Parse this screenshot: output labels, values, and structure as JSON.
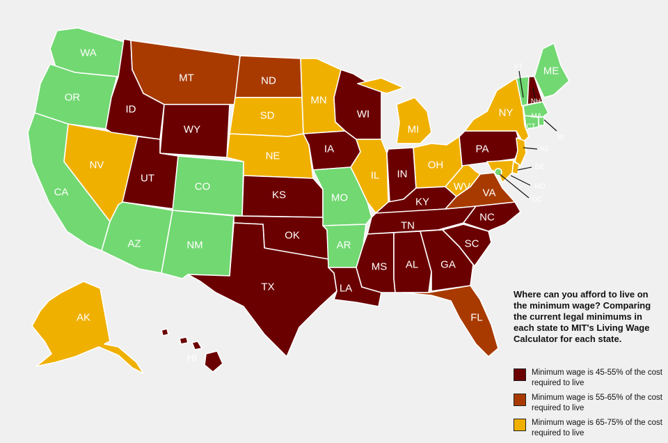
{
  "colors": {
    "band_45_55": "#6b0000",
    "band_55_65": "#a83a00",
    "band_65_75": "#f0b000",
    "band_75_plus": "#72d872"
  },
  "title": "Where can you afford to live on the minimum wage? Comparing the current legal minimums in each state to MIT's Living Wage Calculator for each state.",
  "legend": [
    {
      "label": "Minimum wage is 45-55% of the cost required to live",
      "color": "#6b0000"
    },
    {
      "label": "Minimum wage is 55-65% of the cost required to live",
      "color": "#a83a00"
    },
    {
      "label": "Minimum wage is 65-75% of the cost required to live",
      "color": "#f0b000"
    }
  ],
  "states": [
    {
      "abbr": "WA",
      "band": "band_75_plus"
    },
    {
      "abbr": "OR",
      "band": "band_75_plus"
    },
    {
      "abbr": "CA",
      "band": "band_75_plus"
    },
    {
      "abbr": "NV",
      "band": "band_65_75"
    },
    {
      "abbr": "ID",
      "band": "band_45_55"
    },
    {
      "abbr": "MT",
      "band": "band_55_65"
    },
    {
      "abbr": "WY",
      "band": "band_45_55"
    },
    {
      "abbr": "UT",
      "band": "band_45_55"
    },
    {
      "abbr": "CO",
      "band": "band_75_plus"
    },
    {
      "abbr": "AZ",
      "band": "band_75_plus"
    },
    {
      "abbr": "NM",
      "band": "band_75_plus"
    },
    {
      "abbr": "ND",
      "band": "band_55_65"
    },
    {
      "abbr": "SD",
      "band": "band_65_75"
    },
    {
      "abbr": "NE",
      "band": "band_65_75"
    },
    {
      "abbr": "KS",
      "band": "band_45_55"
    },
    {
      "abbr": "OK",
      "band": "band_45_55"
    },
    {
      "abbr": "TX",
      "band": "band_45_55"
    },
    {
      "abbr": "MN",
      "band": "band_65_75"
    },
    {
      "abbr": "IA",
      "band": "band_45_55"
    },
    {
      "abbr": "MO",
      "band": "band_75_plus"
    },
    {
      "abbr": "AR",
      "band": "band_75_plus"
    },
    {
      "abbr": "LA",
      "band": "band_45_55"
    },
    {
      "abbr": "WI",
      "band": "band_45_55"
    },
    {
      "abbr": "IL",
      "band": "band_65_75"
    },
    {
      "abbr": "MI",
      "band": "band_65_75"
    },
    {
      "abbr": "IN",
      "band": "band_45_55"
    },
    {
      "abbr": "OH",
      "band": "band_65_75"
    },
    {
      "abbr": "KY",
      "band": "band_45_55"
    },
    {
      "abbr": "TN",
      "band": "band_45_55"
    },
    {
      "abbr": "MS",
      "band": "band_45_55"
    },
    {
      "abbr": "AL",
      "band": "band_45_55"
    },
    {
      "abbr": "GA",
      "band": "band_45_55"
    },
    {
      "abbr": "FL",
      "band": "band_55_65"
    },
    {
      "abbr": "SC",
      "band": "band_45_55"
    },
    {
      "abbr": "NC",
      "band": "band_45_55"
    },
    {
      "abbr": "VA",
      "band": "band_55_65"
    },
    {
      "abbr": "WV",
      "band": "band_65_75"
    },
    {
      "abbr": "PA",
      "band": "band_45_55"
    },
    {
      "abbr": "NY",
      "band": "band_65_75"
    },
    {
      "abbr": "VT",
      "band": "band_75_plus"
    },
    {
      "abbr": "NH",
      "band": "band_45_55"
    },
    {
      "abbr": "ME",
      "band": "band_75_plus"
    },
    {
      "abbr": "MA",
      "band": "band_75_plus"
    },
    {
      "abbr": "RI",
      "band": "band_75_plus"
    },
    {
      "abbr": "CT",
      "band": "band_75_plus"
    },
    {
      "abbr": "NJ",
      "band": "band_65_75"
    },
    {
      "abbr": "DE",
      "band": "band_65_75"
    },
    {
      "abbr": "MD",
      "band": "band_65_75"
    },
    {
      "abbr": "DC",
      "band": "band_75_plus"
    },
    {
      "abbr": "AK",
      "band": "band_65_75"
    },
    {
      "abbr": "HI",
      "band": "band_45_55"
    }
  ]
}
